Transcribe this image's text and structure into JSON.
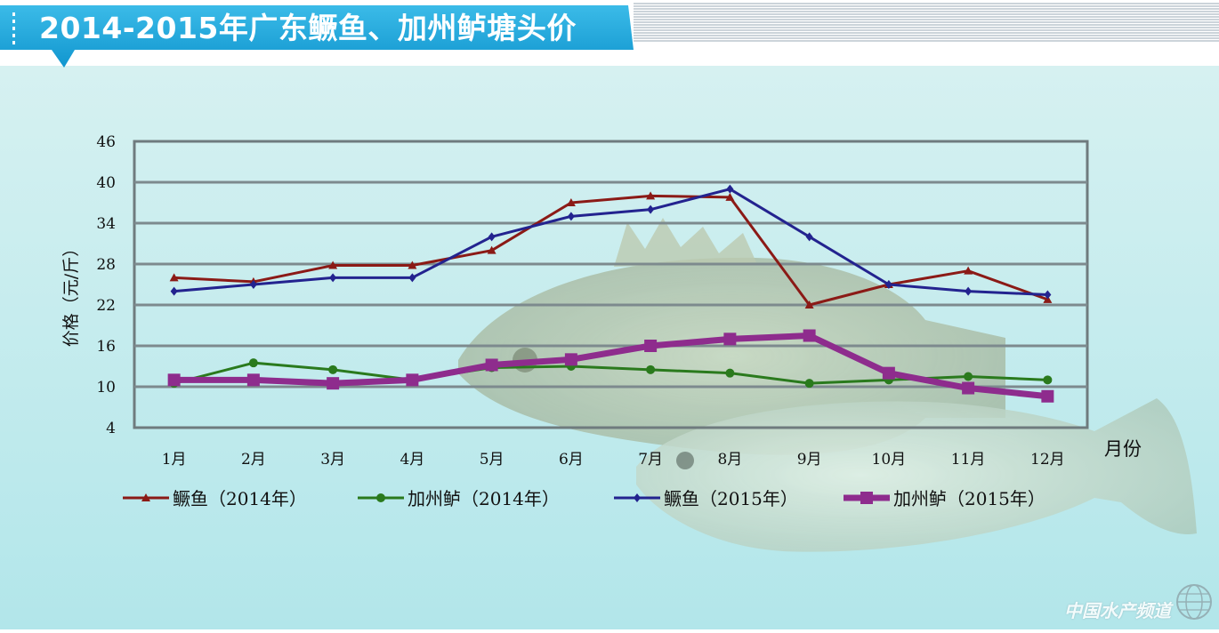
{
  "title": "2014-2015年广东鳜鱼、加州鲈塘头价",
  "watermark": "中国水产频道",
  "colors": {
    "banner": "#1aa3d9",
    "background_top": "#d6f1f1",
    "background_bottom": "#b2e6ea",
    "grid": "#7d8a8e",
    "series": [
      "#8b1a16",
      "#2a7a1d",
      "#23238f",
      "#8e2c8d"
    ]
  },
  "icons": [
    "dotted-bar-icon",
    "globe-icon",
    "fish-illustration"
  ],
  "chart_data": {
    "type": "line",
    "title": "2014-2015年广东鳜鱼、加州鲈塘头价",
    "xlabel": "月份",
    "ylabel": "价格（元/斤）",
    "categories": [
      "1月",
      "2月",
      "3月",
      "4月",
      "5月",
      "6月",
      "7月",
      "8月",
      "9月",
      "10月",
      "11月",
      "12月"
    ],
    "yticks": [
      "46",
      "40",
      "34",
      "28",
      "22",
      "16",
      "10",
      "4"
    ],
    "ylim": [
      4,
      46
    ],
    "grid": true,
    "legend_position": "bottom",
    "series": [
      {
        "name": "鳜鱼（2014年）",
        "color": "#8b1a16",
        "marker": "triangle",
        "values": [
          26,
          25.4,
          27.8,
          27.8,
          30,
          37,
          38,
          37.8,
          22,
          25,
          27,
          22.8
        ]
      },
      {
        "name": "加州鲈（2014年）",
        "color": "#2a7a1d",
        "marker": "circle",
        "values": [
          10.5,
          13.5,
          12.5,
          11,
          12.8,
          13,
          12.5,
          12,
          10.5,
          11,
          11.5,
          11
        ]
      },
      {
        "name": "鳜鱼（2015年）",
        "color": "#23238f",
        "marker": "diamond",
        "values": [
          24,
          25,
          26,
          26,
          32,
          35,
          36,
          39,
          32,
          25,
          24,
          23.5
        ]
      },
      {
        "name": "加州鲈（2015年）",
        "color": "#8e2c8d",
        "marker": "square",
        "values": [
          11,
          11,
          10.5,
          11,
          13.2,
          14,
          16,
          17,
          17.5,
          12,
          9.8,
          8.6
        ]
      }
    ]
  }
}
